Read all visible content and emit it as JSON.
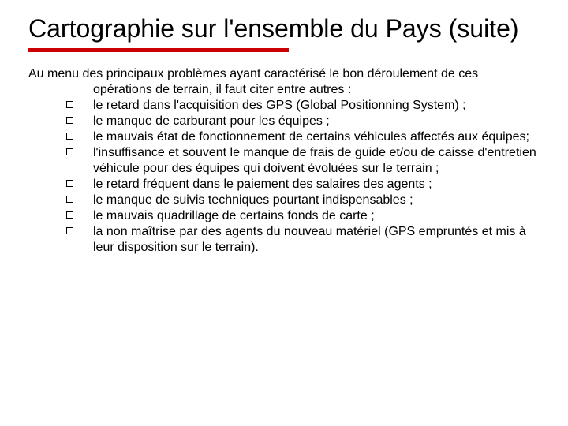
{
  "title": "Cartographie sur l'ensemble du Pays (suite)",
  "underline_color": "#cc0000",
  "intro": "Au menu des principaux problèmes ayant caractérisé le bon déroulement de ces opérations de terrain, il faut citer entre autres :",
  "bullets": [
    "le retard dans l'acquisition des GPS (Global Positionning System) ;",
    "le manque de carburant pour les équipes ;",
    " le mauvais état de fonctionnement de certains véhicules affectés aux équipes;",
    "l'insuffisance et souvent le manque de frais de guide et/ou de caisse d'entretien véhicule pour des équipes qui doivent évoluées sur le terrain ;",
    "le retard fréquent dans le paiement des salaires des agents ;",
    "le manque de suivis techniques pourtant indispensables ;",
    "le mauvais quadrillage de certains fonds de carte ;",
    "la non maîtrise par des agents du nouveau matériel (GPS empruntés et mis à leur disposition sur le terrain)."
  ]
}
